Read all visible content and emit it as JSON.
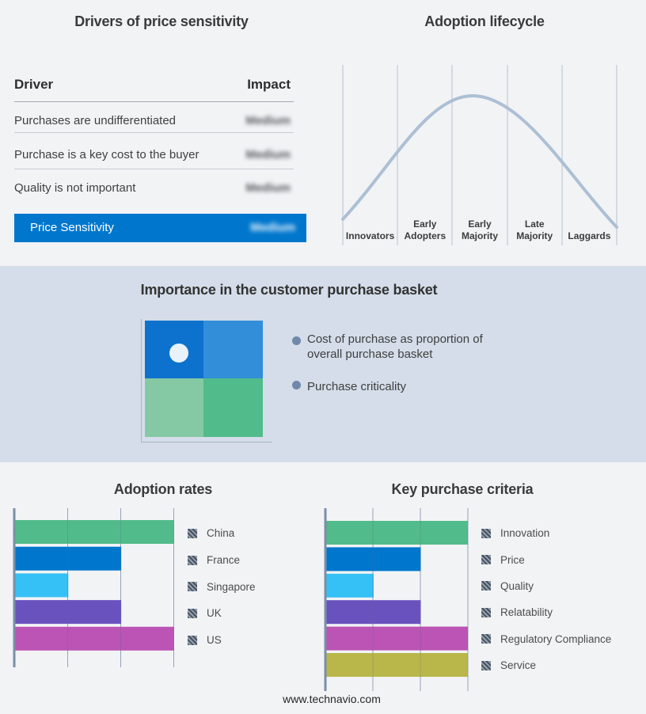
{
  "basket": {
    "title": "Importance in the customer purchase basket",
    "bullets": [
      "Cost of purchase as proportion of overall purchase basket",
      "Purchase criticality"
    ]
  },
  "footer": {
    "url": "www.technavio.com"
  },
  "colors": {
    "page_background": "#f2f3f5",
    "band_background": "#d4dde9",
    "highlight_blue": "#0077cd",
    "curve": "#adbfd4",
    "bullet": "#7089a9",
    "quadrant": {
      "top_left": "#0d72cd",
      "top_right": "#338ed9",
      "bottom_left": "#85c9a4",
      "bottom_right": "#52bb8b"
    }
  },
  "chart_data": [
    {
      "type": "table",
      "title": "Drivers of price sensitivity",
      "columns": [
        "Driver",
        "Impact"
      ],
      "rows": [
        [
          "Purchases are undifferentiated",
          "Medium"
        ],
        [
          "Purchase is a key cost to the buyer",
          "Medium"
        ],
        [
          "Quality is not important",
          "Medium"
        ],
        [
          "Price Sensitivity",
          "Medium"
        ]
      ],
      "note": "Impact values are shown blurred in the source image; last row is a blue highlighted summary row"
    },
    {
      "type": "line",
      "title": "Adoption lifecycle",
      "categories": [
        "Innovators",
        "Early Adopters",
        "Early Majority",
        "Late Majority",
        "Laggards"
      ],
      "description": "Bell-shaped adoption curve peaking over Early Majority; vertical stage gridlines, no numeric axes",
      "curve_points_norm": [
        [
          0.0,
          0.07
        ],
        [
          0.2,
          0.42
        ],
        [
          0.35,
          0.82
        ],
        [
          0.47,
          1.0
        ],
        [
          0.6,
          0.85
        ],
        [
          0.8,
          0.45
        ],
        [
          1.0,
          0.0
        ]
      ]
    },
    {
      "type": "bar",
      "orientation": "horizontal",
      "title": "Adoption rates",
      "categories": [
        "China",
        "France",
        "Singapore",
        "UK",
        "US"
      ],
      "values": [
        3,
        2,
        1,
        2,
        3
      ],
      "value_units": "gridline divisions (axis unlabeled)",
      "xlim": [
        0,
        3
      ],
      "grid": true,
      "legend_position": "right",
      "colors": [
        "#52bb8b",
        "#0077cd",
        "#35c1f5",
        "#6a52be",
        "#bb54b4"
      ]
    },
    {
      "type": "bar",
      "orientation": "horizontal",
      "title": "Key purchase criteria",
      "categories": [
        "Innovation",
        "Price",
        "Quality",
        "Relatability",
        "Regulatory Compliance",
        "Service"
      ],
      "values": [
        3,
        2,
        1,
        2,
        3,
        3
      ],
      "value_units": "gridline divisions (axis unlabeled)",
      "xlim": [
        0,
        3
      ],
      "grid": true,
      "legend_position": "right",
      "colors": [
        "#52bb8b",
        "#0077cd",
        "#35c1f5",
        "#6a52be",
        "#bb54b4",
        "#b9b74a"
      ]
    }
  ]
}
